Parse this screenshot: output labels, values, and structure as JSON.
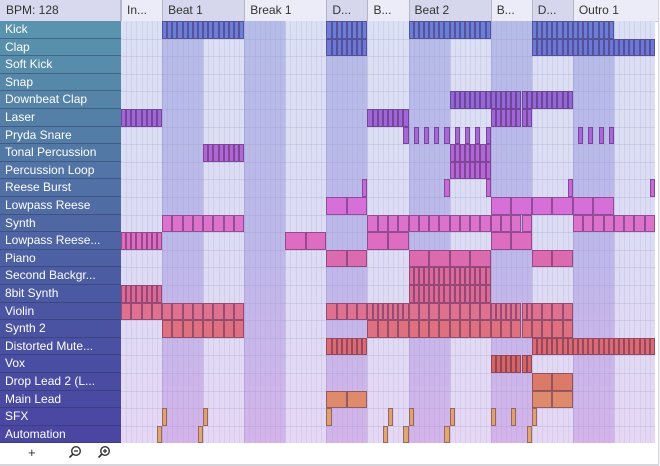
{
  "header": {
    "bpm_label": "BPM: 128",
    "sections": [
      {
        "label": "In...",
        "bars": 1
      },
      {
        "label": "Beat 1",
        "bars": 2
      },
      {
        "label": "Break 1",
        "bars": 2
      },
      {
        "label": "D...",
        "bars": 1
      },
      {
        "label": "B...",
        "bars": 1
      },
      {
        "label": "Beat 2",
        "bars": 2
      },
      {
        "label": "B...",
        "bars": 1
      },
      {
        "label": "D...",
        "bars": 1
      },
      {
        "label": "Outro 1",
        "bars": 2
      }
    ]
  },
  "grid": {
    "total_bars": 13,
    "steps_per_bar": 8
  },
  "tracks": [
    {
      "name": "Kick",
      "color": "#5a93ae",
      "clip_color": "#6c7fd8",
      "clips": [
        [
          8,
          24,
          1
        ],
        [
          40,
          48,
          1
        ],
        [
          56,
          72,
          1
        ],
        [
          80,
          96,
          1
        ]
      ]
    },
    {
      "name": "Clap",
      "color": "#5890ac",
      "clip_color": "#6c78d6",
      "clips": [
        [
          40,
          48,
          1
        ],
        [
          80,
          104,
          1
        ]
      ]
    },
    {
      "name": "Soft Kick",
      "color": "#578caa",
      "clip_color": "#6c78d6",
      "clips": []
    },
    {
      "name": "Snap",
      "color": "#5688a9",
      "clip_color": "#6c78d6",
      "clips": []
    },
    {
      "name": "Downbeat Clap",
      "color": "#5584a8",
      "clip_color": "#9466d6",
      "clips": [
        [
          64,
          88,
          1
        ]
      ]
    },
    {
      "name": "Laser",
      "color": "#5480a8",
      "clip_color": "#a066d8",
      "clips": [
        [
          0,
          8,
          1
        ],
        [
          48,
          56,
          1
        ],
        [
          72,
          80,
          1
        ]
      ]
    },
    {
      "name": "Pryda Snare",
      "color": "#537ca7",
      "clip_color": "#a866d8",
      "clips": [
        [
          55,
          56,
          1
        ],
        [
          57,
          58,
          1
        ],
        [
          59,
          60,
          1
        ],
        [
          61,
          62,
          1
        ],
        [
          63,
          64,
          1
        ],
        [
          65,
          66,
          1
        ],
        [
          67,
          68,
          1
        ],
        [
          69,
          70,
          1
        ],
        [
          71,
          72,
          1
        ],
        [
          89,
          90,
          1
        ],
        [
          91,
          92,
          1
        ],
        [
          93,
          94,
          1
        ],
        [
          95,
          96,
          1
        ]
      ]
    },
    {
      "name": "Tonal Percussion",
      "color": "#5278a6",
      "clip_color": "#b266d6",
      "clips": [
        [
          16,
          24,
          1
        ],
        [
          64,
          72,
          1
        ]
      ]
    },
    {
      "name": "Percussion Loop",
      "color": "#5274a6",
      "clip_color": "#b866d6",
      "clips": [
        [
          64,
          72,
          1
        ]
      ]
    },
    {
      "name": "Reese Burst",
      "color": "#5170a5",
      "clip_color": "#c66ad8",
      "clips": [
        [
          47,
          48,
          1
        ],
        [
          63,
          64,
          1
        ],
        [
          71,
          72,
          1
        ],
        [
          87,
          88,
          1
        ],
        [
          103,
          104,
          1
        ]
      ]
    },
    {
      "name": "Lowpass Reese",
      "color": "#506ca5",
      "clip_color": "#d670d8",
      "clips": [
        [
          40,
          48,
          2
        ],
        [
          72,
          96,
          2
        ]
      ]
    },
    {
      "name": "Synth",
      "color": "#4f68a4",
      "clip_color": "#dc72cc",
      "clips": [
        [
          8,
          24,
          4
        ],
        [
          48,
          80,
          4
        ],
        [
          88,
          104,
          4
        ]
      ]
    },
    {
      "name": "Lowpass Reese...",
      "color": "#4e64a4",
      "clip_color": "#de6cc0",
      "clips": [
        [
          0,
          8,
          1
        ],
        [
          32,
          40,
          2
        ],
        [
          48,
          56,
          2
        ],
        [
          72,
          80,
          2
        ]
      ]
    },
    {
      "name": "Piano",
      "color": "#4d60a3",
      "clip_color": "#dc6aaf",
      "clips": [
        [
          40,
          48,
          2
        ],
        [
          56,
          72,
          2
        ],
        [
          80,
          88,
          2
        ]
      ]
    },
    {
      "name": "Second Backgr...",
      "color": "#4c5ca3",
      "clip_color": "#dc6a9a",
      "clips": [
        [
          56,
          72,
          1
        ]
      ]
    },
    {
      "name": "8bit Synth",
      "color": "#4b58a2",
      "clip_color": "#dc6a94",
      "clips": [
        [
          0,
          8,
          1
        ],
        [
          56,
          72,
          1
        ]
      ]
    },
    {
      "name": "Violin",
      "color": "#4b55a2",
      "clip_color": "#de7090",
      "clips": [
        [
          0,
          24,
          4
        ],
        [
          40,
          48,
          4
        ],
        [
          48,
          56,
          1
        ],
        [
          56,
          72,
          4
        ],
        [
          72,
          80,
          1
        ],
        [
          80,
          88,
          4
        ]
      ]
    },
    {
      "name": "Synth 2",
      "color": "#4a52a2",
      "clip_color": "#de7080",
      "clips": [
        [
          8,
          24,
          4
        ],
        [
          48,
          88,
          4
        ]
      ]
    },
    {
      "name": "Distorted Mute...",
      "color": "#4a50a2",
      "clip_color": "#dc6a70",
      "clips": [
        [
          40,
          48,
          1
        ],
        [
          80,
          104,
          1
        ]
      ]
    },
    {
      "name": "Vox",
      "color": "#4a4ea2",
      "clip_color": "#d86462",
      "clips": [
        [
          72,
          80,
          1
        ]
      ]
    },
    {
      "name": "Drop Lead 2 (L...",
      "color": "#4a4ca2",
      "clip_color": "#dc7a6a",
      "clips": [
        [
          80,
          88,
          2
        ]
      ]
    },
    {
      "name": "Main Lead",
      "color": "#4a4aa2",
      "clip_color": "#de8a6c",
      "clips": [
        [
          40,
          48,
          2
        ],
        [
          80,
          88,
          2
        ]
      ]
    },
    {
      "name": "SFX",
      "color": "#4a48a2",
      "clip_color": "#e0a070",
      "clips": [
        [
          8,
          9,
          1
        ],
        [
          16,
          17,
          1
        ],
        [
          40,
          41,
          1
        ],
        [
          52,
          53,
          1
        ],
        [
          56,
          57,
          1
        ],
        [
          64,
          65,
          1
        ],
        [
          72,
          73,
          1
        ],
        [
          76,
          77,
          1
        ],
        [
          80,
          81,
          1
        ]
      ]
    },
    {
      "name": "Automation",
      "color": "#4a46a2",
      "clip_color": "#e0a870",
      "clips": [
        [
          7,
          8,
          1
        ],
        [
          15,
          16,
          1
        ],
        [
          51,
          52,
          1
        ],
        [
          55,
          56,
          1
        ],
        [
          63,
          64,
          1
        ],
        [
          79,
          80,
          1
        ]
      ]
    }
  ],
  "footer": {
    "add_label": "+",
    "zoom_out_icon": "zoom-out-icon",
    "zoom_in_icon": "zoom-in-icon"
  }
}
